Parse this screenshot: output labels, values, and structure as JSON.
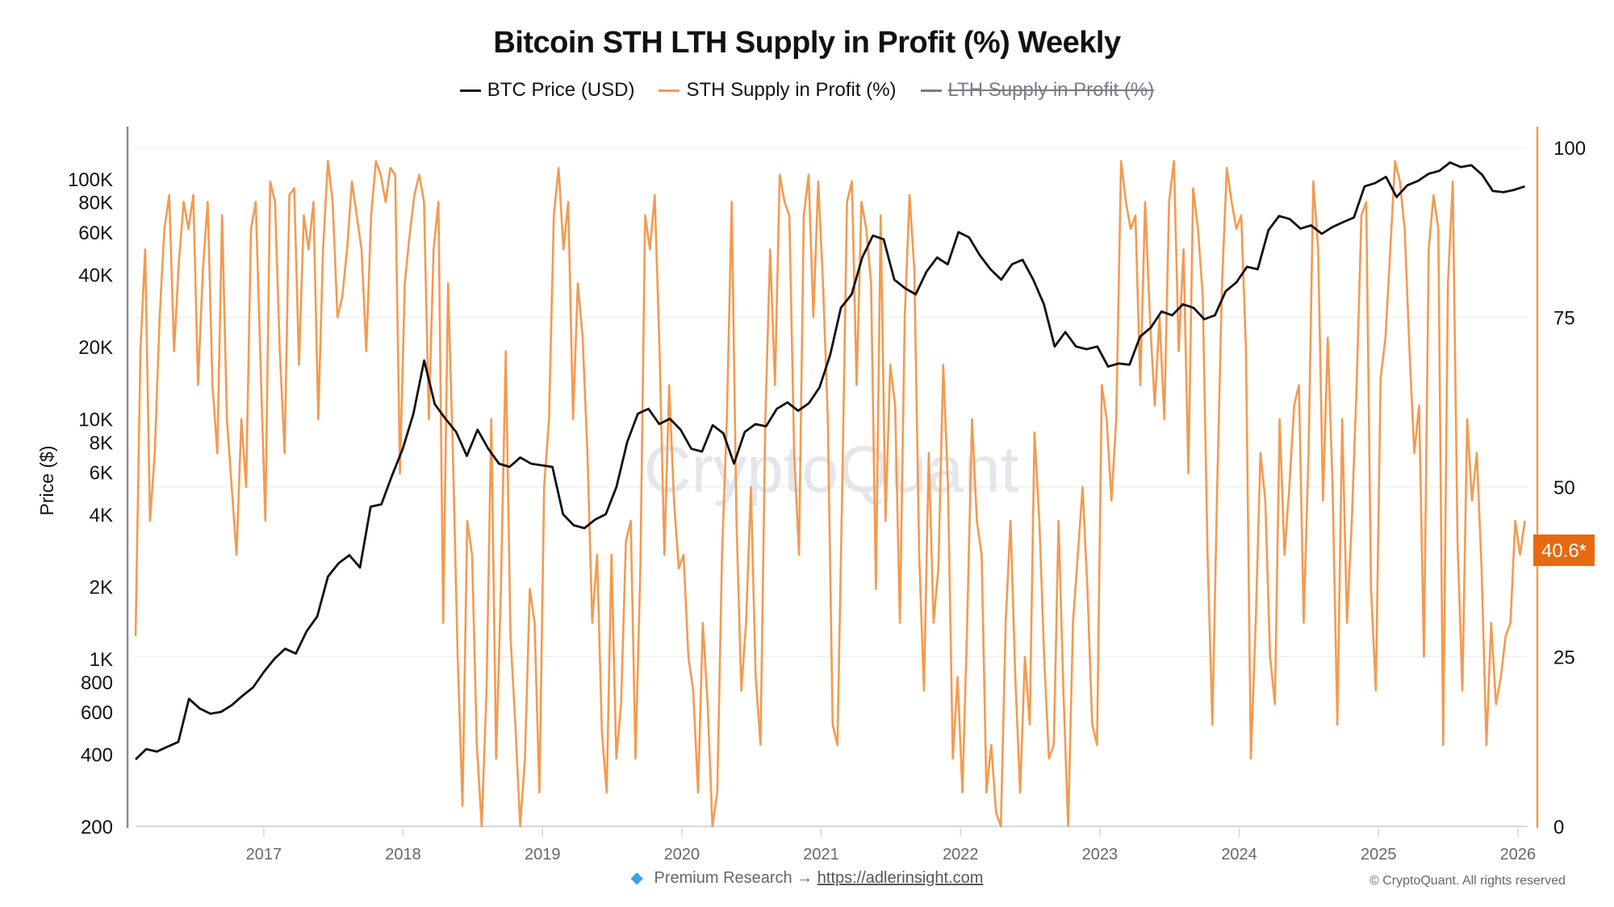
{
  "chart_data": {
    "type": "line",
    "title": "Bitcoin STH LTH Supply in Profit (%) Weekly",
    "legend": [
      {
        "name": "BTC Price (USD)",
        "color": "#111111",
        "visible": true
      },
      {
        "name": "STH Supply in Profit (%)",
        "color": "#f39a50",
        "visible": true
      },
      {
        "name": "LTH Supply in Profit (%)",
        "color": "#7a7a85",
        "visible": false
      }
    ],
    "legend_position": "top-center",
    "ylabel_left": "Price ($)",
    "ylabel_right": "",
    "left_axis": {
      "scale": "log",
      "range": [
        200,
        130000
      ],
      "ticks": [
        200,
        400,
        600,
        800,
        1000,
        2000,
        4000,
        6000,
        8000,
        10000,
        20000,
        40000,
        60000,
        80000,
        100000
      ],
      "tick_labels": [
        "200",
        "400",
        "600",
        "800",
        "1K",
        "2K",
        "4K",
        "6K",
        "8K",
        "10K",
        "20K",
        "40K",
        "60K",
        "80K",
        "100K"
      ]
    },
    "right_axis": {
      "scale": "linear",
      "range": [
        0,
        100
      ],
      "ticks": [
        0,
        25,
        50,
        75,
        100
      ],
      "tick_labels": [
        "0",
        "25",
        "50",
        "75",
        "100"
      ]
    },
    "x_axis": {
      "range": [
        2016.08,
        2026.07
      ],
      "ticks": [
        2017,
        2018,
        2019,
        2020,
        2021,
        2022,
        2023,
        2024,
        2025,
        2026
      ],
      "tick_labels": [
        "2017",
        "2018",
        "2019",
        "2020",
        "2021",
        "2022",
        "2023",
        "2024",
        "2025",
        "2026"
      ]
    },
    "grid": true,
    "current_value_label": "40.6*",
    "current_value": 40.6,
    "watermark": "CryptoQuant",
    "series": [
      {
        "name": "BTC Price (USD)",
        "axis": "left",
        "x_start": 2016.08,
        "x_step": 0.0833,
        "values": [
          380,
          420,
          410,
          430,
          450,
          680,
          620,
          590,
          600,
          640,
          700,
          760,
          880,
          1000,
          1100,
          1050,
          1300,
          1500,
          2200,
          2500,
          2700,
          2400,
          4300,
          4400,
          5800,
          7500,
          10500,
          17500,
          11500,
          10000,
          8800,
          7000,
          9000,
          7500,
          6500,
          6300,
          6900,
          6500,
          6400,
          6300,
          4000,
          3600,
          3500,
          3800,
          4000,
          5200,
          8000,
          10500,
          11000,
          9500,
          10000,
          9000,
          7500,
          7300,
          9400,
          8700,
          6500,
          8800,
          9500,
          9300,
          11000,
          11700,
          10800,
          11600,
          13500,
          18500,
          29000,
          33000,
          47000,
          58000,
          56000,
          38000,
          35000,
          33000,
          41000,
          47000,
          44000,
          60000,
          57000,
          48000,
          42000,
          38000,
          44000,
          46000,
          38000,
          30000,
          20000,
          23000,
          20000,
          19500,
          20000,
          16500,
          17000,
          16800,
          22000,
          24000,
          28000,
          27000,
          30000,
          29000,
          26000,
          27000,
          34000,
          37000,
          43000,
          42000,
          61000,
          70000,
          68000,
          62000,
          64000,
          59000,
          63000,
          66000,
          69000,
          93000,
          96000,
          102000,
          84000,
          94000,
          98000,
          105000,
          108000,
          117000,
          112000,
          114000,
          104000,
          89000,
          88000,
          90000,
          93000
        ]
      },
      {
        "name": "STH Supply in Profit (%)",
        "axis": "right",
        "x_start": 2016.08,
        "x_step": 0.04167,
        "values": [
          28,
          70,
          85,
          45,
          55,
          75,
          88,
          93,
          70,
          83,
          92,
          88,
          93,
          65,
          82,
          92,
          65,
          55,
          90,
          60,
          50,
          40,
          60,
          50,
          88,
          92,
          68,
          45,
          95,
          92,
          70,
          55,
          93,
          94,
          68,
          90,
          85,
          92,
          60,
          85,
          98,
          92,
          75,
          78,
          85,
          95,
          90,
          85,
          70,
          90,
          98,
          96,
          92,
          97,
          96,
          52,
          80,
          87,
          93,
          96,
          92,
          60,
          85,
          92,
          30,
          80,
          55,
          25,
          3,
          45,
          40,
          12,
          0,
          20,
          60,
          10,
          35,
          70,
          28,
          15,
          0,
          10,
          35,
          30,
          5,
          50,
          60,
          90,
          97,
          85,
          92,
          60,
          80,
          72,
          55,
          30,
          40,
          14,
          5,
          40,
          10,
          18,
          42,
          45,
          10,
          38,
          90,
          85,
          93,
          70,
          40,
          65,
          48,
          38,
          40,
          25,
          20,
          5,
          30,
          18,
          0,
          5,
          40,
          60,
          92,
          45,
          20,
          30,
          50,
          22,
          12,
          60,
          85,
          65,
          96,
          92,
          90,
          55,
          40,
          90,
          96,
          75,
          95,
          80,
          60,
          15,
          12,
          50,
          92,
          95,
          65,
          92,
          88,
          80,
          35,
          90,
          45,
          68,
          62,
          30,
          75,
          93,
          82,
          40,
          20,
          55,
          30,
          38,
          68,
          50,
          10,
          22,
          5,
          30,
          60,
          45,
          40,
          5,
          12,
          2,
          0,
          30,
          45,
          22,
          5,
          25,
          15,
          58,
          45,
          25,
          10,
          12,
          45,
          20,
          0,
          30,
          40,
          50,
          35,
          15,
          12,
          65,
          60,
          48,
          60,
          98,
          92,
          88,
          90,
          65,
          92,
          75,
          62,
          75,
          60,
          92,
          98,
          70,
          85,
          52,
          94,
          88,
          78,
          40,
          15,
          50,
          80,
          97,
          92,
          88,
          90,
          70,
          10,
          30,
          55,
          48,
          25,
          18,
          60,
          40,
          50,
          62,
          65,
          30,
          55,
          95,
          85,
          48,
          72,
          50,
          15,
          60,
          30,
          45,
          65,
          90,
          92,
          35,
          20,
          66,
          72,
          85,
          98,
          95,
          88,
          70,
          55,
          62,
          25,
          85,
          93,
          88,
          12,
          80,
          95,
          42,
          20,
          60,
          48,
          55,
          38,
          12,
          30,
          18,
          22,
          28,
          30,
          45,
          40,
          45
        ]
      }
    ]
  },
  "footer": {
    "premium_label": "Premium Research →",
    "premium_link": "https://adlerinsight.com",
    "copyright": "© CryptoQuant. All rights reserved"
  }
}
